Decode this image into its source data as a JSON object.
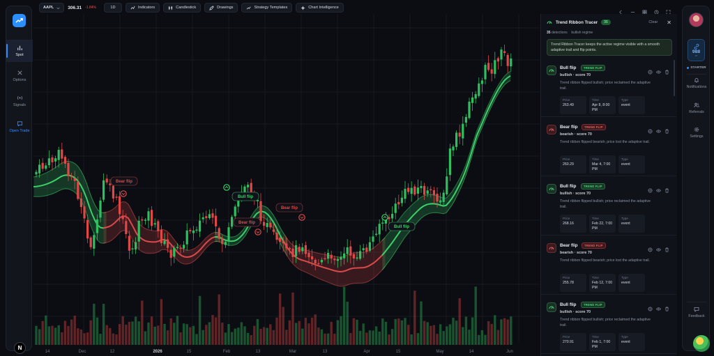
{
  "toolbar": {
    "symbol": "AAPL",
    "price": "306.31",
    "change": "-1.84%",
    "interval": "1D",
    "indicators": "Indicators",
    "chart_type": "Candlestick",
    "drawings": "Drawings",
    "strategy_templates": "Strategy Templates",
    "chart_intelligence": "Chart Intelligence"
  },
  "left_nav": {
    "items": [
      {
        "label": "Spot",
        "icon": "bar-chart-icon"
      },
      {
        "label": "Options",
        "icon": "options-icon"
      },
      {
        "label": "Signals",
        "icon": "signal-icon"
      },
      {
        "label": "Open Trade",
        "icon": "chat-icon"
      }
    ],
    "bottom_badge": "N"
  },
  "chart_data": {
    "type": "candlestick",
    "x_ticks": [
      "14",
      "Dec",
      "12",
      "2026",
      "15",
      "Feb",
      "13",
      "Mar",
      "13",
      "Apr",
      "15",
      "May",
      "14",
      "Jun"
    ],
    "annotations": [
      {
        "label": "Bear flip",
        "kind": "bear"
      },
      {
        "label": "Bull flip",
        "kind": "bull"
      },
      {
        "label": "Bear flip",
        "kind": "bear"
      },
      {
        "label": "Bear flip",
        "kind": "bear"
      },
      {
        "label": "Bull flip",
        "kind": "bull"
      }
    ],
    "colors": {
      "up": "#2fbf5f",
      "down": "#e04848",
      "ribbon_bull": "#3ccf6a",
      "ribbon_bear": "#d94b4b"
    }
  },
  "panel": {
    "title": "Trend Ribbon Tracer",
    "count": "35",
    "clear": "Clear",
    "detections_count": "35",
    "detections_label": "detections",
    "regime": "bullish regime",
    "description": "Trend Ribbon Tracer keeps the active regime visible with a smooth adaptive trail and flip points.",
    "items": [
      {
        "kind": "bull",
        "title": "Bull flip",
        "tag": "TREND FLIP",
        "score": "bullish · score 70",
        "text": "Trend ribbon flipped bullish; price reclaimed the adaptive trail.",
        "price_label": "Price",
        "price": "263.49",
        "time_label": "Time",
        "time": "Apr 8, 8:00 PM",
        "type_label": "Type",
        "type": "event"
      },
      {
        "kind": "bear",
        "title": "Bear flip",
        "tag": "TREND FLIP",
        "score": "bearish · score 70",
        "text": "Trend ribbon flipped bearish; price lost the adaptive trail.",
        "price_label": "Price",
        "price": "260.29",
        "time_label": "Time",
        "time": "Mar 4, 7:00 PM",
        "type_label": "Type",
        "type": "event"
      },
      {
        "kind": "bull",
        "title": "Bull flip",
        "tag": "TREND FLIP",
        "score": "bullish · score 70",
        "text": "Trend ribbon flipped bullish; price reclaimed the adaptive trail.",
        "price_label": "Price",
        "price": "268.16",
        "time_label": "Time",
        "time": "Feb 22, 7:00 PM",
        "type_label": "Type",
        "type": "event"
      },
      {
        "kind": "bear",
        "title": "Bear flip",
        "tag": "TREND FLIP",
        "score": "bearish · score 70",
        "text": "Trend ribbon flipped bearish; price lost the adaptive trail.",
        "price_label": "Price",
        "price": "255.78",
        "time_label": "Time",
        "time": "Feb 12, 7:00 PM",
        "type_label": "Type",
        "type": "event"
      },
      {
        "kind": "bull",
        "title": "Bull flip",
        "tag": "TREND FLIP",
        "score": "bullish · score 70",
        "text": "Trend ribbon flipped bullish; price reclaimed the adaptive trail.",
        "price_label": "Price",
        "price": "270.91",
        "time_label": "Time",
        "time": "Feb 1, 7:00 PM",
        "type_label": "Type",
        "type": "event"
      }
    ]
  },
  "right_rail": {
    "credits": "988",
    "credits_unit": "cr",
    "plan": "STARTER",
    "notifications": "Notifications",
    "referrals": "Referrals",
    "settings": "Settings",
    "feedback": "Feedback"
  }
}
